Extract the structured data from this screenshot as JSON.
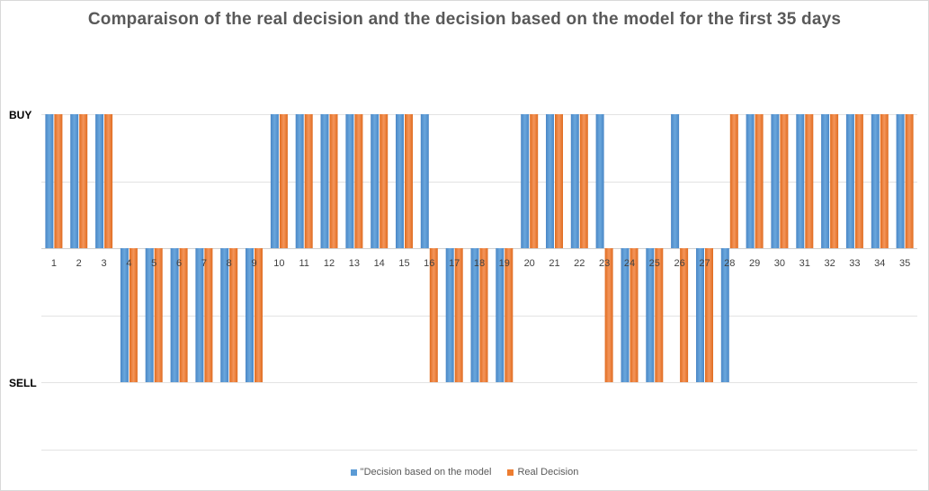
{
  "chart_data": {
    "type": "bar",
    "title": "Comparaison  of the real decision and the decision based on the model for the first 35 days",
    "y_tick_labels": [
      "BUY",
      "SELL"
    ],
    "y_tick_values": [
      1,
      -1
    ],
    "ylim": [
      -1.5,
      1
    ],
    "grid": true,
    "legend_position": "bottom",
    "categories": [
      "1",
      "2",
      "3",
      "4",
      "5",
      "6",
      "7",
      "8",
      "9",
      "10",
      "11",
      "12",
      "13",
      "14",
      "15",
      "16",
      "17",
      "18",
      "19",
      "20",
      "21",
      "22",
      "23",
      "24",
      "25",
      "26",
      "27",
      "28",
      "29",
      "30",
      "31",
      "32",
      "33",
      "34",
      "35"
    ],
    "series": [
      {
        "name": "\"Decision based on the model",
        "color": "#5b9bd5",
        "values": [
          1,
          1,
          1,
          -1,
          -1,
          -1,
          -1,
          -1,
          -1,
          1,
          1,
          1,
          1,
          1,
          1,
          1,
          -1,
          -1,
          -1,
          1,
          1,
          1,
          1,
          -1,
          -1,
          1,
          -1,
          -1,
          1,
          1,
          1,
          1,
          1,
          1,
          1
        ]
      },
      {
        "name": "Real Decision",
        "color": "#ed7d31",
        "values": [
          1,
          1,
          1,
          -1,
          -1,
          -1,
          -1,
          -1,
          -1,
          1,
          1,
          1,
          1,
          1,
          1,
          -1,
          -1,
          -1,
          -1,
          1,
          1,
          1,
          -1,
          -1,
          -1,
          -1,
          -1,
          1,
          1,
          1,
          1,
          1,
          1,
          1,
          1
        ]
      }
    ]
  }
}
